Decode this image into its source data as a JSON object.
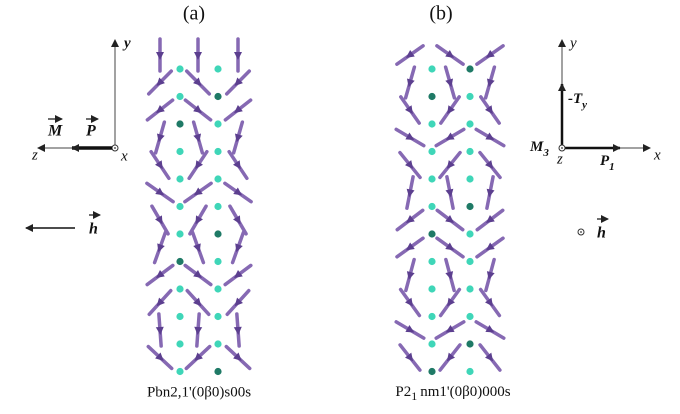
{
  "panels": [
    {
      "label": "(a)",
      "caption": "Pbn2,1'(0β0)s00s",
      "axes": {
        "y": "y",
        "z": "z",
        "x": "x"
      },
      "vectors": {
        "M": "M",
        "P": "P",
        "h": "h"
      }
    },
    {
      "label": "(b)",
      "caption_main": "P2",
      "caption_sub": "1",
      "caption_rest": "nm1'(0β0)000s",
      "axes": {
        "y": "y",
        "z": "z",
        "x": "x"
      },
      "vectors": {
        "T": "-T",
        "T_sub": "y",
        "M": "M",
        "M_sub": "3",
        "P": "P",
        "P_sub": "1",
        "h": "h"
      }
    }
  ]
}
